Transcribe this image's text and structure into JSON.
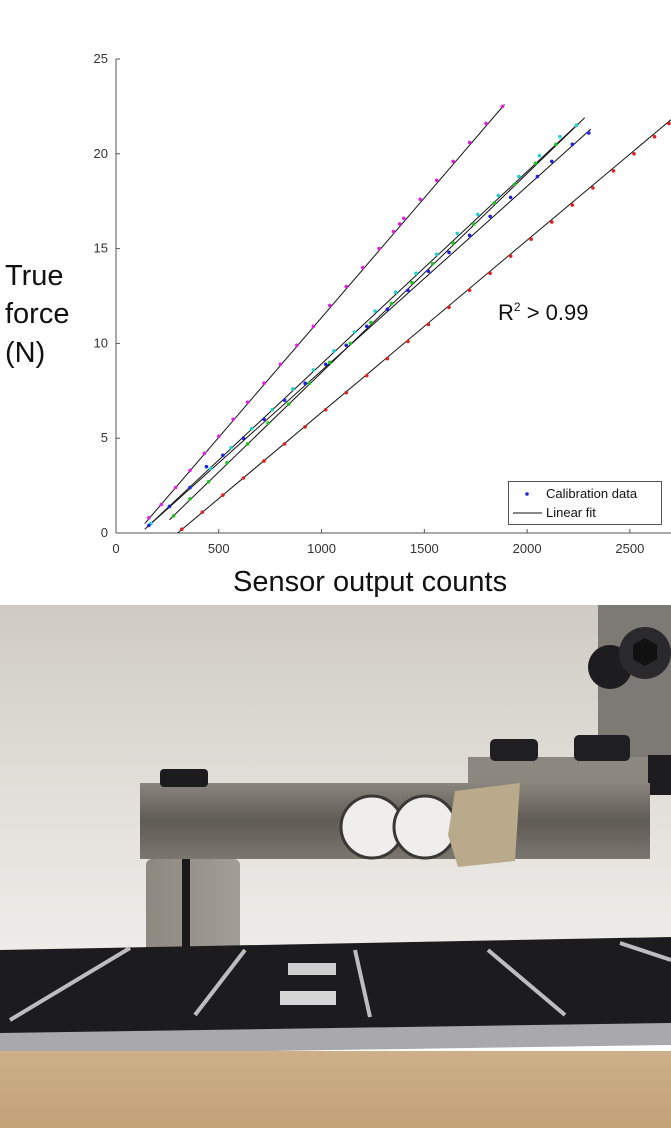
{
  "chart_data": {
    "type": "scatter",
    "ylabel_lines": [
      "True",
      "force",
      "(N)"
    ],
    "xlabel": "Sensor output counts",
    "annotation": "R",
    "annotation_sup": "2",
    "annotation_rest": " > 0.99",
    "xlim": [
      0,
      2700
    ],
    "ylim": [
      0,
      25
    ],
    "xticks": [
      0,
      500,
      1000,
      1500,
      2000,
      2500
    ],
    "yticks": [
      0,
      5,
      10,
      15,
      20,
      25
    ],
    "legend": {
      "position": "bottom-right",
      "entries": [
        "Calibration data",
        "Linear fit"
      ]
    },
    "series": [
      {
        "color": "#e020e0",
        "fit": [
          [
            140,
            0.5
          ],
          [
            1890,
            22.6
          ]
        ],
        "points": [
          [
            160,
            0.8
          ],
          [
            220,
            1.5
          ],
          [
            290,
            2.4
          ],
          [
            360,
            3.3
          ],
          [
            430,
            4.2
          ],
          [
            500,
            5.1
          ],
          [
            570,
            6.0
          ],
          [
            640,
            6.9
          ],
          [
            720,
            7.9
          ],
          [
            800,
            8.9
          ],
          [
            880,
            9.9
          ],
          [
            960,
            10.9
          ],
          [
            1040,
            12.0
          ],
          [
            1120,
            13.0
          ],
          [
            1200,
            14.0
          ],
          [
            1280,
            15.0
          ],
          [
            1350,
            15.9
          ],
          [
            1380,
            16.3
          ],
          [
            1400,
            16.6
          ],
          [
            1480,
            17.6
          ],
          [
            1560,
            18.6
          ],
          [
            1640,
            19.6
          ],
          [
            1720,
            20.6
          ],
          [
            1800,
            21.6
          ],
          [
            1880,
            22.5
          ]
        ]
      },
      {
        "color": "#20c020",
        "fit": [
          [
            260,
            0.7
          ],
          [
            2280,
            21.9
          ]
        ],
        "points": [
          [
            280,
            0.9
          ],
          [
            360,
            1.8
          ],
          [
            450,
            2.7
          ],
          [
            540,
            3.7
          ],
          [
            640,
            4.7
          ],
          [
            740,
            5.8
          ],
          [
            840,
            6.8
          ],
          [
            940,
            7.9
          ],
          [
            1040,
            9.0
          ],
          [
            1140,
            10.0
          ],
          [
            1240,
            11.1
          ],
          [
            1340,
            12.1
          ],
          [
            1440,
            13.2
          ],
          [
            1540,
            14.2
          ],
          [
            1640,
            15.3
          ],
          [
            1740,
            16.3
          ],
          [
            1840,
            17.4
          ],
          [
            1940,
            18.4
          ],
          [
            2040,
            19.5
          ],
          [
            2140,
            20.5
          ],
          [
            2240,
            21.5
          ]
        ]
      },
      {
        "color": "#20d0d0",
        "fit": [
          [
            150,
            0.3
          ],
          [
            2250,
            21.6
          ]
        ],
        "points": [
          [
            170,
            0.5
          ],
          [
            260,
            1.4
          ],
          [
            360,
            2.4
          ],
          [
            460,
            3.4
          ],
          [
            560,
            4.5
          ],
          [
            660,
            5.5
          ],
          [
            760,
            6.5
          ],
          [
            860,
            7.6
          ],
          [
            960,
            8.6
          ],
          [
            1060,
            9.6
          ],
          [
            1160,
            10.6
          ],
          [
            1260,
            11.7
          ],
          [
            1360,
            12.7
          ],
          [
            1460,
            13.7
          ],
          [
            1560,
            14.7
          ],
          [
            1660,
            15.8
          ],
          [
            1760,
            16.8
          ],
          [
            1860,
            17.8
          ],
          [
            1960,
            18.8
          ],
          [
            2060,
            19.9
          ],
          [
            2160,
            20.9
          ],
          [
            2240,
            21.5
          ]
        ]
      },
      {
        "color": "#2020e0",
        "fit": [
          [
            140,
            0.2
          ],
          [
            2310,
            21.3
          ]
        ],
        "points": [
          [
            160,
            0.4
          ],
          [
            260,
            1.4
          ],
          [
            360,
            2.4
          ],
          [
            440,
            3.5
          ],
          [
            520,
            4.1
          ],
          [
            620,
            5.0
          ],
          [
            720,
            6.0
          ],
          [
            820,
            7.0
          ],
          [
            920,
            7.9
          ],
          [
            1020,
            8.9
          ],
          [
            1120,
            9.9
          ],
          [
            1220,
            10.9
          ],
          [
            1320,
            11.8
          ],
          [
            1420,
            12.8
          ],
          [
            1520,
            13.8
          ],
          [
            1620,
            14.8
          ],
          [
            1720,
            15.7
          ],
          [
            1820,
            16.7
          ],
          [
            1920,
            17.7
          ],
          [
            2050,
            18.8
          ],
          [
            2120,
            19.6
          ],
          [
            2220,
            20.5
          ],
          [
            2300,
            21.1
          ]
        ]
      },
      {
        "color": "#e02020",
        "fit": [
          [
            300,
            0.0
          ],
          [
            2700,
            21.8
          ]
        ],
        "points": [
          [
            320,
            0.2
          ],
          [
            420,
            1.1
          ],
          [
            520,
            2.0
          ],
          [
            620,
            2.9
          ],
          [
            720,
            3.8
          ],
          [
            820,
            4.7
          ],
          [
            920,
            5.6
          ],
          [
            1020,
            6.5
          ],
          [
            1120,
            7.4
          ],
          [
            1220,
            8.3
          ],
          [
            1320,
            9.2
          ],
          [
            1420,
            10.1
          ],
          [
            1520,
            11.0
          ],
          [
            1620,
            11.9
          ],
          [
            1720,
            12.8
          ],
          [
            1820,
            13.7
          ],
          [
            1920,
            14.6
          ],
          [
            2020,
            15.5
          ],
          [
            2120,
            16.4
          ],
          [
            2220,
            17.3
          ],
          [
            2320,
            18.2
          ],
          [
            2420,
            19.1
          ],
          [
            2520,
            20.0
          ],
          [
            2620,
            20.9
          ],
          [
            2690,
            21.6
          ]
        ]
      }
    ]
  },
  "photo": {
    "description_icon": "load-cell-photo",
    "colors": {
      "wall": "#d8d4cd",
      "mat": "#1c1c1e",
      "bar": "#6e6a63",
      "table": "#c9ab80"
    }
  }
}
